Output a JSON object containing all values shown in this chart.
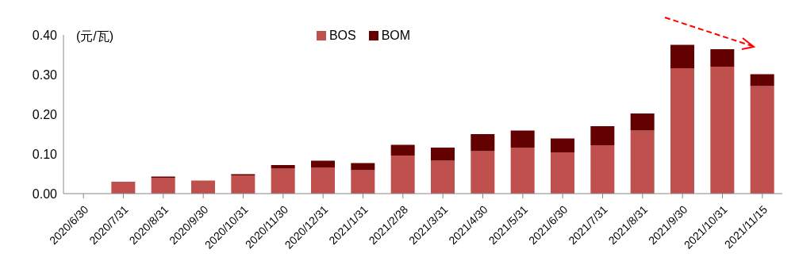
{
  "chart_data": {
    "type": "bar",
    "stacked": true,
    "ylabel": "(元/瓦)",
    "categories": [
      "2020/6/30",
      "2020/7/31",
      "2020/8/31",
      "2020/9/30",
      "2020/10/31",
      "2020/11/30",
      "2020/12/31",
      "2021/1/31",
      "2021/2/28",
      "2021/3/31",
      "2021/4/30",
      "2021/5/31",
      "2021/6/30",
      "2021/7/31",
      "2021/8/31",
      "2021/9/30",
      "2021/10/31",
      "2021/11/15"
    ],
    "series": [
      {
        "name": "BOS",
        "color": "#c0504d",
        "values": [
          0,
          0.03,
          0.04,
          0.033,
          0.046,
          0.063,
          0.066,
          0.059,
          0.096,
          0.083,
          0.107,
          0.116,
          0.104,
          0.122,
          0.159,
          0.316,
          0.32,
          0.271
        ]
      },
      {
        "name": "BOM",
        "color": "#630000",
        "values": [
          0,
          0,
          0.003,
          0,
          0.003,
          0.009,
          0.017,
          0.018,
          0.027,
          0.033,
          0.043,
          0.043,
          0.035,
          0.048,
          0.043,
          0.059,
          0.044,
          0.03
        ]
      }
    ],
    "ylim": [
      0,
      0.4
    ],
    "yticks": [
      {
        "value": 0,
        "label": "0.00"
      },
      {
        "value": 0.1,
        "label": "0.10"
      },
      {
        "value": 0.2,
        "label": "0.20"
      },
      {
        "value": 0.3,
        "label": "0.30"
      },
      {
        "value": 0.4,
        "label": "0.40"
      }
    ],
    "grid": false,
    "legend": "top"
  }
}
